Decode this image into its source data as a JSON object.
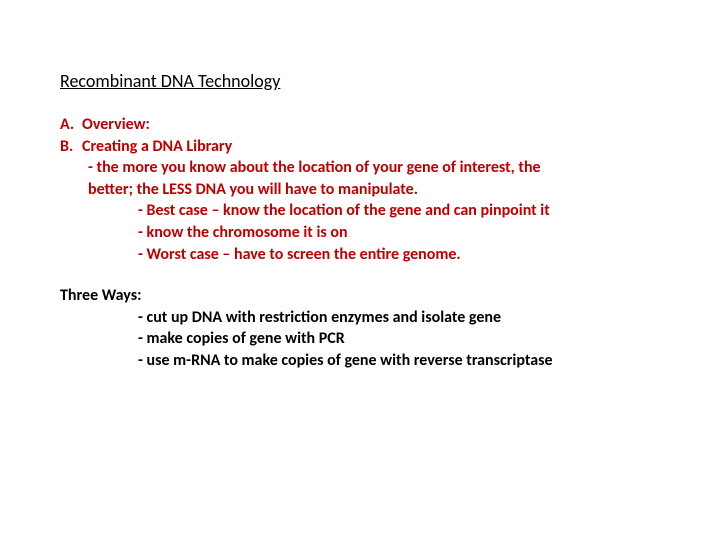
{
  "colors": {
    "background": "#ffffff",
    "text_black": "#000000",
    "text_red": "#c00000"
  },
  "typography": {
    "family": "Calibri",
    "title_fontsize": 18,
    "body_fontsize": 16,
    "body_weight": 700,
    "line_height": 1.35
  },
  "title": "Recombinant DNA Technology",
  "outline": {
    "a": {
      "letter": "A.",
      "label": "Overview:"
    },
    "b": {
      "letter": "B.",
      "label": "Creating a DNA Library"
    }
  },
  "b_note_line1": " - the more you know about the location of your gene of interest, the",
  "b_note_line2": "better; the LESS DNA you will have to manipulate.",
  "b_sub1": "- Best case – know the location of the gene and can pinpoint it",
  "b_sub2": "- know the chromosome it is on",
  "b_sub3": "- Worst case – have to screen the entire genome.",
  "three_ways_heading": "Three Ways:",
  "three_ways": {
    "w1": "- cut up DNA with restriction enzymes and isolate gene",
    "w2": "- make copies of gene with PCR",
    "w3": "- use m-RNA to make copies of gene with reverse transcriptase"
  }
}
